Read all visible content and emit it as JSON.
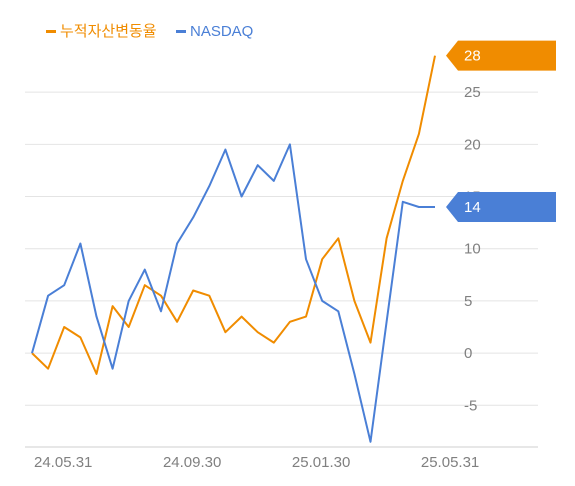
{
  "chart_data": {
    "type": "line",
    "title": "",
    "xlabel": "",
    "ylabel": "",
    "ylim": [
      -9,
      30
    ],
    "y_ticks": [
      25,
      20,
      15,
      10,
      5,
      0,
      -5
    ],
    "x_tick_labels": [
      "24.05.31",
      "24.09.30",
      "25.01.30",
      "25.05.31"
    ],
    "grid": true,
    "legend_position": "top-left",
    "x": [
      "24.05.31",
      "24.06.15",
      "24.06.30",
      "24.07.15",
      "24.07.31",
      "24.08.15",
      "24.08.31",
      "24.09.15",
      "24.09.30",
      "24.10.15",
      "24.10.31",
      "24.11.15",
      "24.11.30",
      "24.12.15",
      "24.12.31",
      "25.01.15",
      "25.01.30",
      "25.02.15",
      "25.02.28",
      "25.03.15",
      "25.03.31",
      "25.04.15",
      "25.04.30",
      "25.05.15",
      "25.05.31",
      "25.06.10"
    ],
    "series": [
      {
        "name": "누적자산변동율",
        "color": "#f08c00",
        "values": [
          0.0,
          -1.5,
          2.5,
          1.5,
          -2.0,
          4.5,
          2.5,
          6.5,
          5.5,
          3.0,
          6.0,
          5.5,
          2.0,
          3.5,
          2.0,
          1.0,
          3.0,
          3.5,
          9.0,
          11.0,
          5.0,
          1.0,
          11.0,
          16.5,
          21.0,
          28.5
        ],
        "end_label": "28"
      },
      {
        "name": "NASDAQ",
        "color": "#4a7fd6",
        "values": [
          0.0,
          5.5,
          6.5,
          10.5,
          3.5,
          -1.5,
          5.0,
          8.0,
          4.0,
          10.5,
          13.0,
          16.0,
          19.5,
          15.0,
          18.0,
          16.5,
          20.0,
          9.0,
          5.0,
          4.0,
          -2.0,
          -8.5,
          3.0,
          14.5,
          14.0,
          14.0
        ],
        "end_label": "14"
      }
    ]
  }
}
